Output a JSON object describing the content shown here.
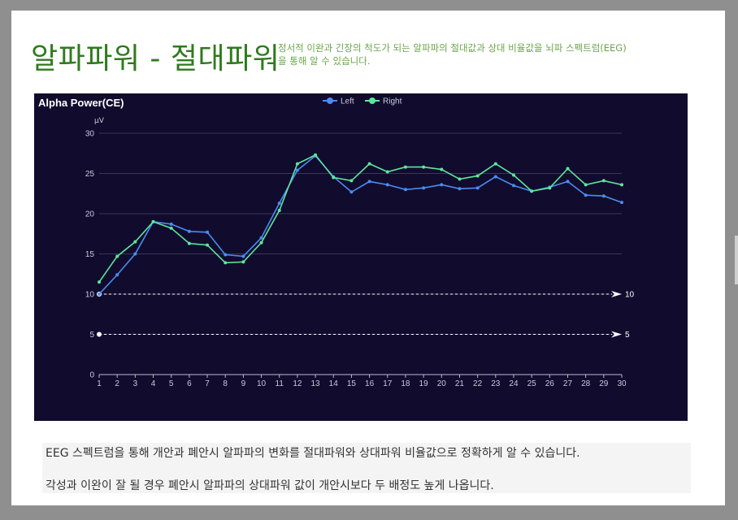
{
  "page": {
    "title": "알파파워 - 절대파워",
    "subtitle": "정서적 이완과 긴장의 척도가 되는 알파파의 절대값과 상대 비율값을 뇌파 스펙트럼(EEG)을 통해 알 수 있습니다.",
    "description_1": "EEG 스펙트럼을 통해 개안과 폐안시 알파파의 변화를 절대파워와 상대파워 비율값으로 정확하게 알 수 있습니다.",
    "description_2": "각성과 이완이 잘 될 경우 폐안시 알파파의 상대파워 값이 개안시보다 두 배정도 높게 나옵니다."
  },
  "colors": {
    "chart_bg": "#110c2e",
    "left": "#4a8cf0",
    "right": "#5ee69a",
    "title_green": "#2f7a1e"
  },
  "chart_data": {
    "type": "line",
    "title": "Alpha Power(CE)",
    "ylabel": "μV",
    "xlabel": "",
    "ylim": [
      0,
      30
    ],
    "yticks": [
      0,
      5,
      10,
      15,
      20,
      25,
      30
    ],
    "grid": true,
    "legend_position": "top-center",
    "x": [
      1,
      2,
      3,
      4,
      5,
      6,
      7,
      8,
      9,
      10,
      11,
      12,
      13,
      14,
      15,
      16,
      17,
      18,
      19,
      20,
      21,
      22,
      23,
      24,
      25,
      26,
      27,
      28,
      29,
      30
    ],
    "series": [
      {
        "name": "Left",
        "color": "#4a8cf0",
        "values": [
          10.0,
          12.4,
          15.0,
          19.0,
          18.7,
          17.8,
          17.7,
          14.9,
          14.7,
          17.0,
          21.3,
          25.4,
          27.2,
          24.6,
          22.7,
          24.0,
          23.6,
          23.0,
          23.2,
          23.6,
          23.1,
          23.2,
          24.6,
          23.5,
          22.8,
          23.3,
          24.0,
          22.3,
          22.2,
          21.4
        ]
      },
      {
        "name": "Right",
        "color": "#5ee69a",
        "values": [
          11.5,
          14.7,
          16.5,
          19.0,
          18.2,
          16.3,
          16.1,
          13.9,
          14.0,
          16.4,
          20.4,
          26.2,
          27.3,
          24.5,
          24.1,
          26.2,
          25.2,
          25.8,
          25.8,
          25.5,
          24.3,
          24.7,
          26.2,
          24.8,
          22.8,
          23.2,
          25.6,
          23.6,
          24.1,
          23.6
        ]
      }
    ],
    "reference_lines": [
      {
        "label": "10",
        "value": 10
      },
      {
        "label": "5",
        "value": 5
      }
    ]
  }
}
